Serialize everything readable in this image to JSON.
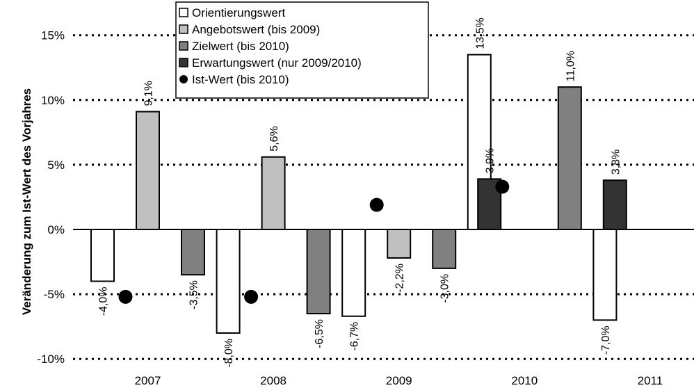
{
  "chart_data": {
    "type": "bar",
    "ylabel": "Veränderung zum Ist-Wert des Vorjahres",
    "categories": [
      "2007",
      "2008",
      "2009",
      "2010",
      "2011"
    ],
    "ylim": [
      -10,
      15
    ],
    "yticks": [
      -10,
      -5,
      0,
      5,
      10,
      15
    ],
    "ytick_labels": [
      "-10%",
      "-5%",
      "0%",
      "5%",
      "10%",
      "15%"
    ],
    "grid": "horizontal dotted",
    "legend_position": "top-center",
    "series": [
      {
        "name": "Orientierungswert",
        "color": "#ffffff",
        "values": [
          -4.0,
          -8.0,
          -6.7,
          13.5,
          -7.0
        ],
        "labels": [
          "-4,0%",
          "-8,0%",
          "-6,7%",
          "13,5%",
          "-7,0%"
        ]
      },
      {
        "name": "Angebotswert (bis 2009)",
        "color": "#c0c0c0",
        "values": [
          9.1,
          5.6,
          -2.2,
          null,
          null
        ],
        "labels": [
          "9,1%",
          "5,6%",
          "-2,2%",
          "",
          ""
        ]
      },
      {
        "name": "Zielwert (bis 2010)",
        "color": "#808080",
        "values": [
          -3.5,
          -6.5,
          -3.0,
          11.0,
          null
        ],
        "labels": [
          "-3,5%",
          "-6,5%",
          "-3,0%",
          "11,0%",
          ""
        ]
      },
      {
        "name": "Erwartungswert (nur 2009/2010)",
        "color": "#333333",
        "values": [
          null,
          null,
          3.9,
          3.8,
          null
        ],
        "labels": [
          "",
          "",
          "3,9%",
          "3,8%",
          ""
        ]
      },
      {
        "name": "Ist-Wert (bis 2010)",
        "color": "#000000",
        "marker": "circle",
        "values": [
          -5.2,
          -5.2,
          1.9,
          3.3,
          null
        ]
      }
    ]
  }
}
